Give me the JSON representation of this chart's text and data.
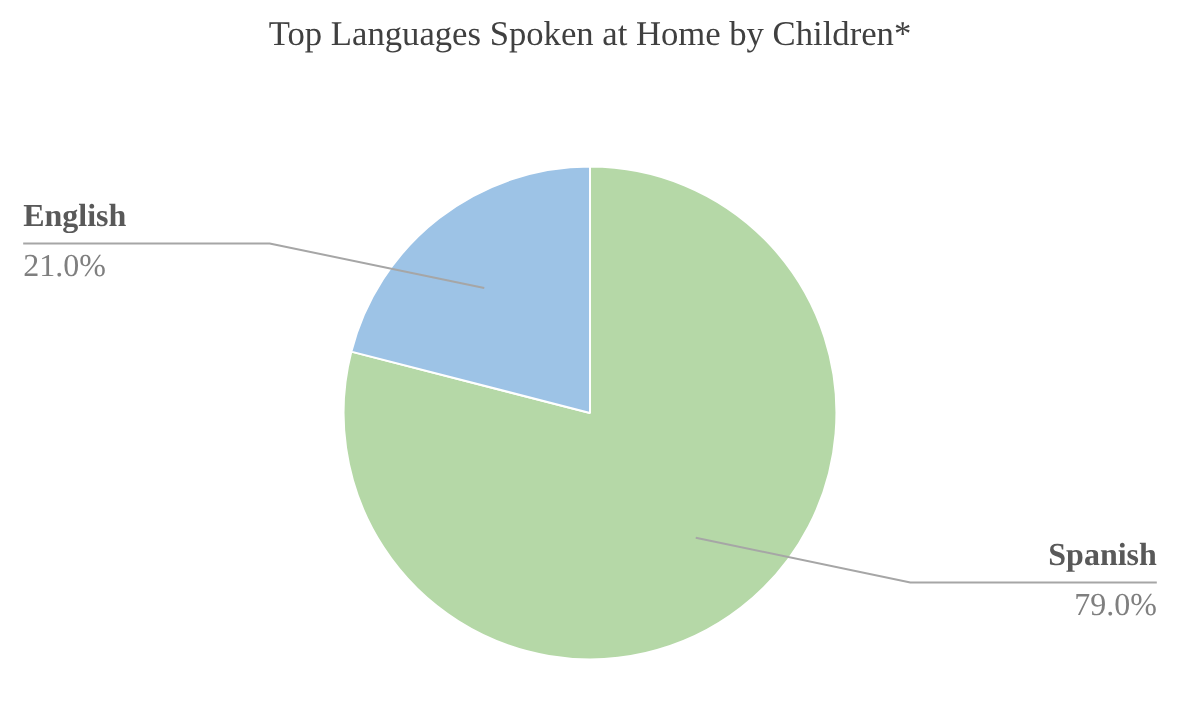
{
  "chart_data": {
    "type": "pie",
    "title": "Top Languages Spoken at Home by Children*",
    "categories": [
      "Spanish",
      "English"
    ],
    "values": [
      79.0,
      21.0
    ],
    "colors": [
      "#b5d8a7",
      "#9dc3e6"
    ],
    "value_labels": [
      "79.0%",
      "21.0%"
    ]
  }
}
